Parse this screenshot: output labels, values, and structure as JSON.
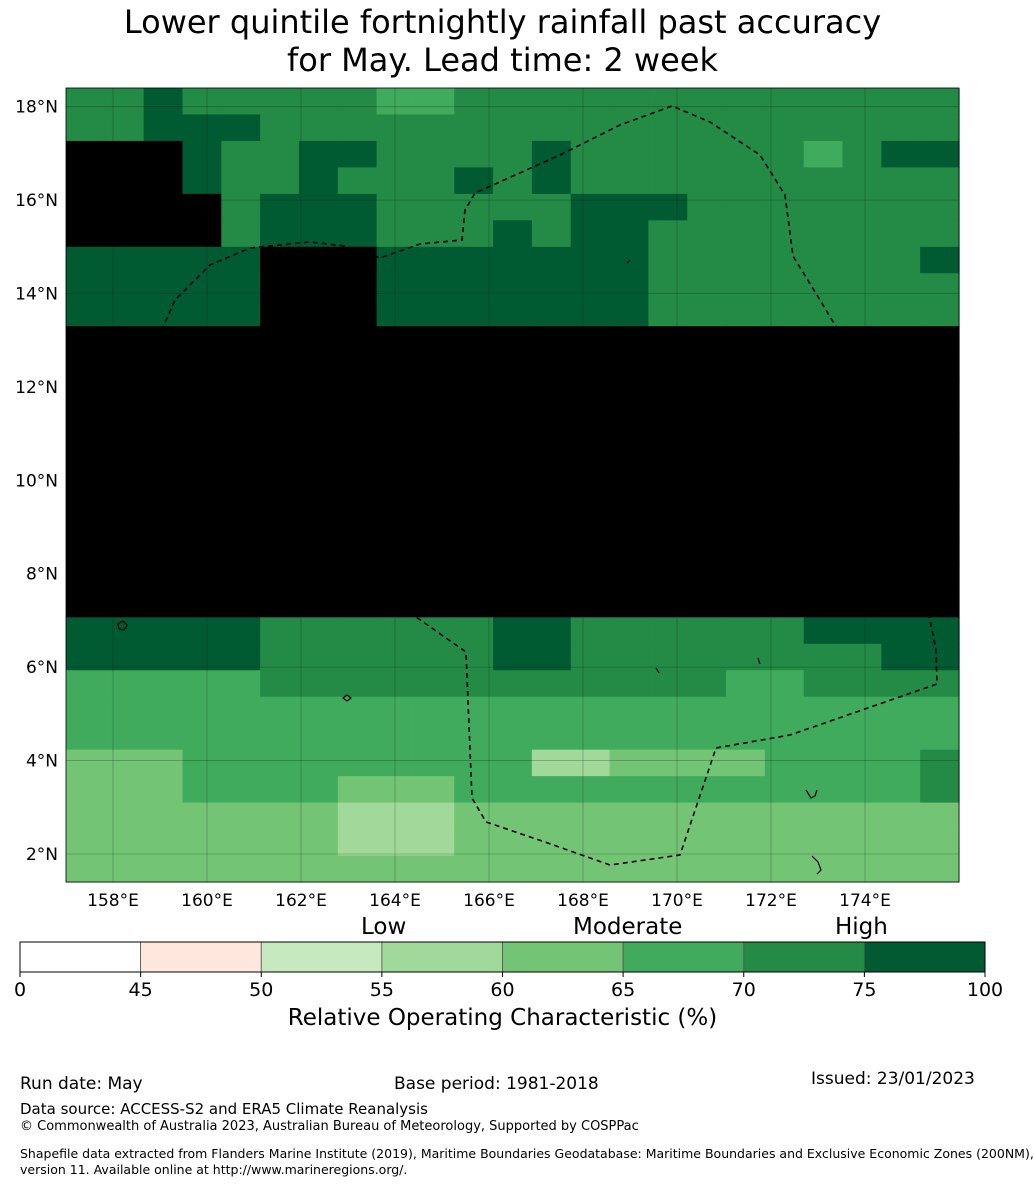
{
  "title": {
    "line1": "Lower quintile fortnightly rainfall past accuracy",
    "line2": "for May. Lead time: 2 week"
  },
  "map": {
    "lon_range": [
      157,
      176
    ],
    "lat_range": [
      1.4,
      18.4
    ],
    "lat_ticks": [
      "18°N",
      "16°N",
      "14°N",
      "12°N",
      "10°N",
      "8°N",
      "6°N",
      "4°N",
      "2°N"
    ],
    "lon_ticks": [
      "158°E",
      "160°E",
      "162°E",
      "164°E",
      "166°E",
      "168°E",
      "170°E",
      "172°E",
      "174°E"
    ],
    "boundary": "dashed EEZ outline (Marshall Islands)",
    "grid_cols": 23,
    "grid_rows": 30,
    "grid_encoding": "each character is one grid cell, row-major from north to south, west to east; digit = colour band index into colorbar.colors",
    "grid": [
      "66766666556666666666666",
      "66777666666666666666666",
      "88876677666676666665677",
      "88876676667676666666666",
      "88886777666667776666666",
      "88886777666767766666666",
      "77777888777777766666667",
      "77777888777777766666666",
      "77777888777777766666666",
      "88888888888888888888888",
      "88888888888888888888888",
      "88888888888888888888888",
      "88888888888888888888888",
      "88888888888888888888888",
      "88888888888888888888888",
      "88888888888888888888888",
      "88888888888888888888888",
      "88888888888888888888888",
      "88888888888888888888888",
      "88888888888888888888888",
      "77777666666776666667777",
      "77777666666776666666677",
      "55555666666666666556666",
      "55555555555555555555555",
      "55555555555555555555555",
      "44455555555533444455556",
      "44455554445555555555556",
      "44444443334444444444444",
      "44444443334444444444444",
      "44444444444444444444444"
    ]
  },
  "colorbar": {
    "categories": [
      "Low",
      "Moderate",
      "High"
    ],
    "ticks": [
      "0",
      "45",
      "50",
      "55",
      "60",
      "65",
      "70",
      "75",
      "100"
    ],
    "colors": [
      "#ffffff",
      "#fee8de",
      "#c7e9c0",
      "#a1d99b",
      "#74c476",
      "#41ab5d",
      "#238b45",
      "#005a32"
    ],
    "label": "Relative Operating Characteristic (%)"
  },
  "footer": {
    "run_date": "Run date: May",
    "base_period": "Base period: 1981-2018",
    "issued": "Issued: 23/01/2023",
    "data_source": "Data source: ACCESS-S2 and ERA5 Climate Reanalysis",
    "copyright": "© Commonwealth of Australia 2023, Australian Bureau of Meteorology, Supported by COSPPac",
    "shapefile_line1": "Shapefile data extracted from Flanders Marine Institute (2019), Maritime Boundaries Geodatabase: Maritime Boundaries and Exclusive Economic Zones (200NM),",
    "shapefile_line2": "version 11. Available online at http://www.marineregions.org/."
  }
}
